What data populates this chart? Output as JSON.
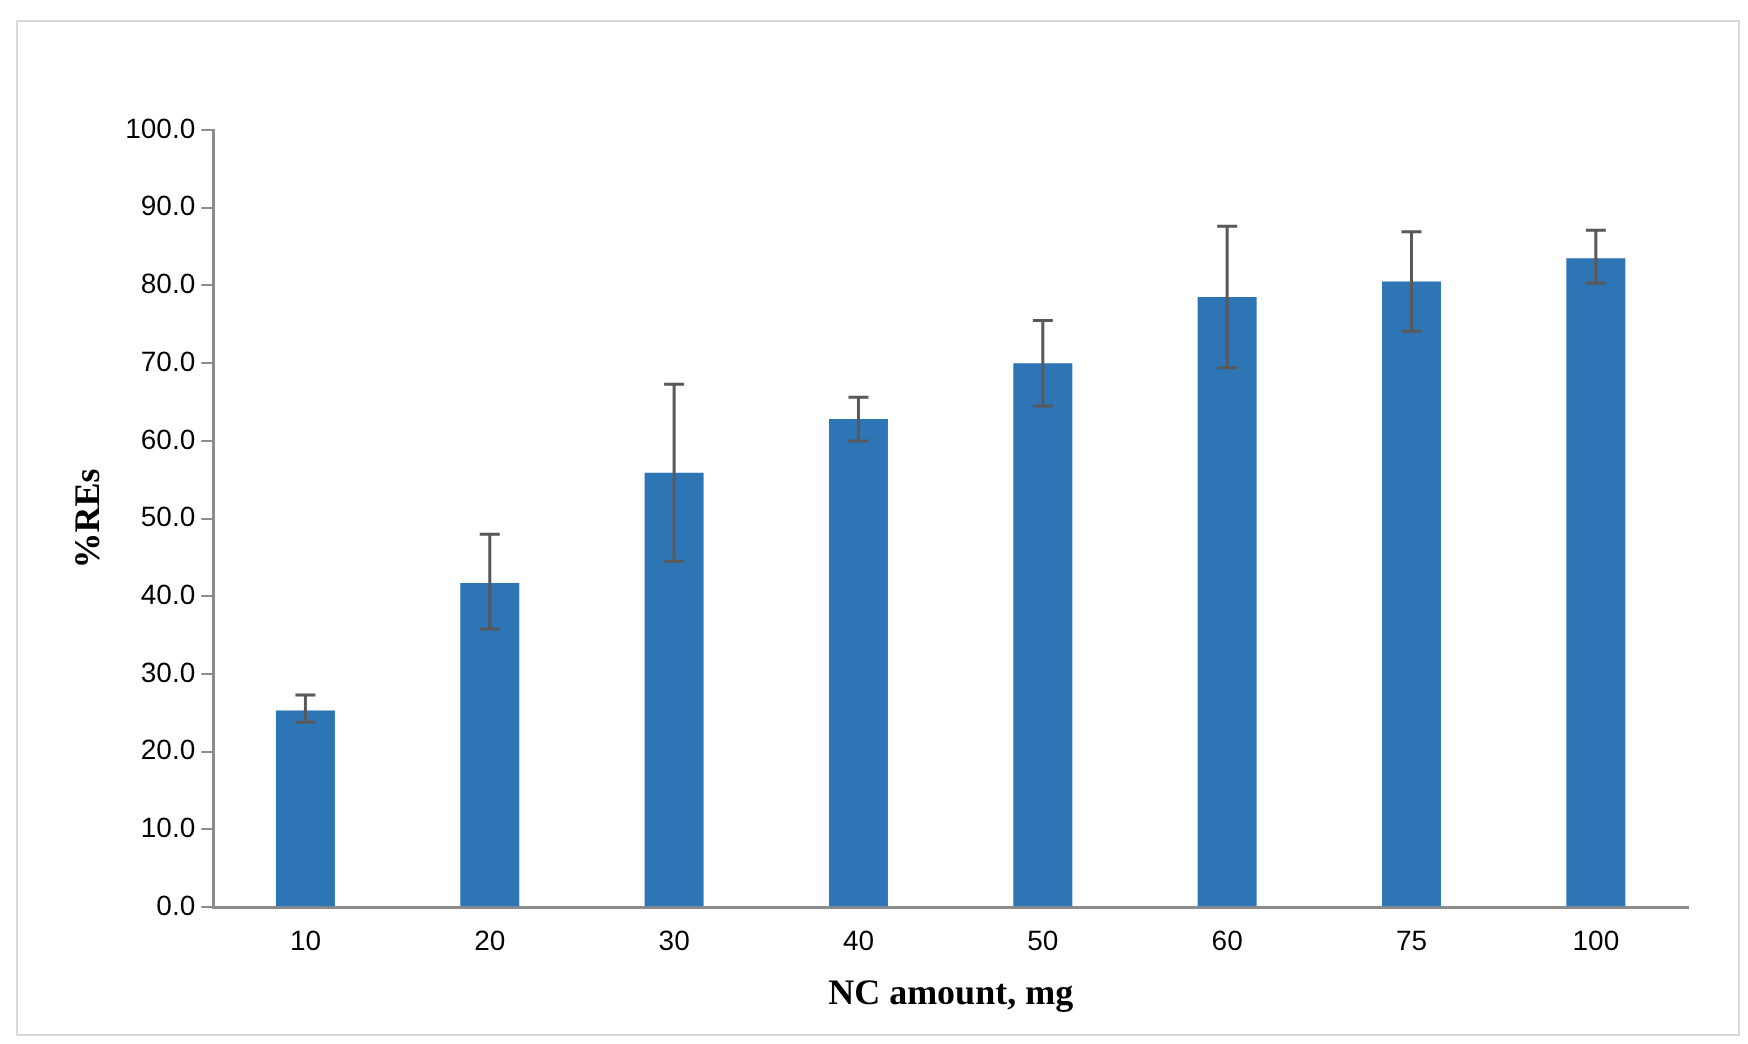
{
  "chart_data": {
    "type": "bar",
    "xlabel": "NC amount, mg",
    "ylabel": "%REs",
    "categories": [
      "10",
      "20",
      "30",
      "40",
      "50",
      "60",
      "75",
      "100"
    ],
    "values": [
      25.3,
      41.7,
      55.9,
      62.8,
      70.0,
      78.5,
      80.5,
      83.5
    ],
    "errors": [
      [
        23.8,
        27.3
      ],
      [
        35.8,
        48.0
      ],
      [
        44.5,
        67.3
      ],
      [
        60.0,
        65.6
      ],
      [
        64.5,
        75.5
      ],
      [
        69.4,
        87.6
      ],
      [
        74.1,
        86.9
      ],
      [
        80.3,
        87.1
      ]
    ],
    "color": "#2e75b6",
    "ylim": [
      0,
      100
    ],
    "yticks": [
      {
        "value": 0,
        "label": "0.0"
      },
      {
        "value": 10,
        "label": "10.0"
      },
      {
        "value": 20,
        "label": "20.0"
      },
      {
        "value": 30,
        "label": "30.0"
      },
      {
        "value": 40,
        "label": "40.0"
      },
      {
        "value": 50,
        "label": "50.0"
      },
      {
        "value": 60,
        "label": "60.0"
      },
      {
        "value": 70,
        "label": "70.0"
      },
      {
        "value": 80,
        "label": "80.0"
      },
      {
        "value": 90,
        "label": "90.0"
      },
      {
        "value": 100,
        "label": "100.0"
      }
    ],
    "grid": false,
    "legend": false
  }
}
